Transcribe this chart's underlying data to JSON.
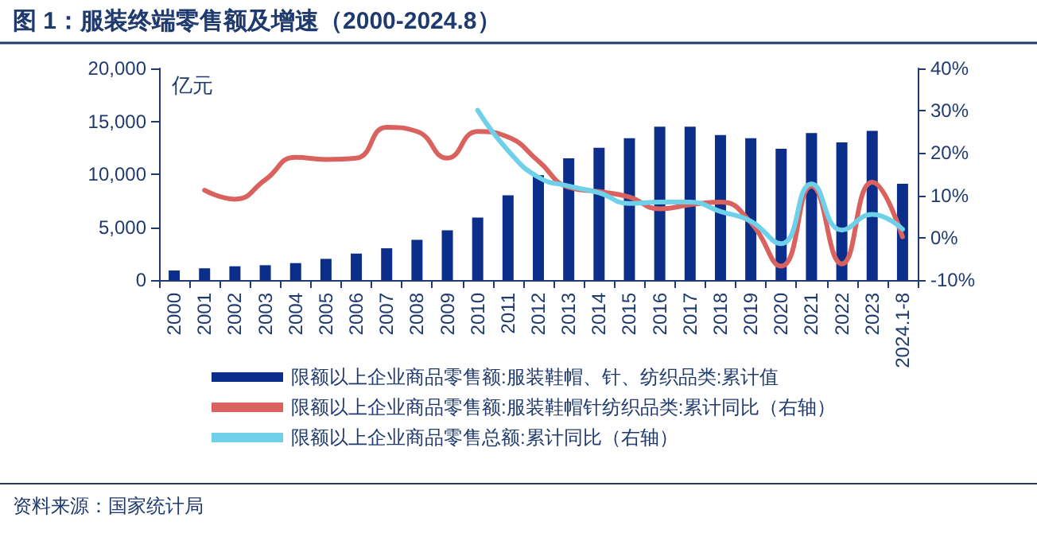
{
  "chart_data": {
    "type": "bar",
    "title": "图 1：服装终端零售额及增速（2000-2024.8）",
    "ylabel": "亿元",
    "annotations": [
      "资料来源：国家统计局"
    ],
    "categories": [
      "2000",
      "2001",
      "2002",
      "2003",
      "2004",
      "2005",
      "2006",
      "2007",
      "2008",
      "2009",
      "2010",
      "2011",
      "2012",
      "2013",
      "2014",
      "2015",
      "2016",
      "2017",
      "2018",
      "2019",
      "2020",
      "2021",
      "2022",
      "2023",
      "2024.1-8"
    ],
    "ylim": [
      0,
      20000
    ],
    "yticks": [
      {
        "value": 0,
        "label": "0"
      },
      {
        "value": 5000,
        "label": "5,000"
      },
      {
        "value": 10000,
        "label": "10,000"
      },
      {
        "value": 15000,
        "label": "15,000"
      },
      {
        "value": 20000,
        "label": "20,000"
      }
    ],
    "y2lim": [
      -10,
      40
    ],
    "y2ticks": [
      {
        "value": -10,
        "label": "-10%"
      },
      {
        "value": 0,
        "label": "0%"
      },
      {
        "value": 10,
        "label": "10%"
      },
      {
        "value": 20,
        "label": "20%"
      },
      {
        "value": 30,
        "label": "30%"
      },
      {
        "value": 40,
        "label": "40%"
      }
    ],
    "legend": "bottom",
    "grid": false,
    "marker": "none",
    "series": [
      {
        "name": "限额以上企业商品零售额:服装鞋帽、针、纺织品类:累计值",
        "color": "#0b2e8a",
        "values": [
          900,
          1100,
          1300,
          1400,
          1600,
          2000,
          2500,
          3000,
          3800,
          4700,
          5900,
          8000,
          9900,
          11500,
          12500,
          13400,
          14500,
          14500,
          13700,
          13400,
          12400,
          13900,
          13000,
          14100,
          9100
        ]
      },
      {
        "name": "限额以上企业商品零售额:服装鞋帽针纺织品类:累计同比（右轴）",
        "type": "line",
        "axis": "y2",
        "color": "#d9625f",
        "values": [
          null,
          11.2,
          9.1,
          13.7,
          19.0,
          18.5,
          18.8,
          26.1,
          25.1,
          18.8,
          25.1,
          23.8,
          18.1,
          11.9,
          10.9,
          9.6,
          6.8,
          7.8,
          8.4,
          3.6,
          -6.7,
          12.2,
          -6.2,
          13.1,
          0.2
        ]
      },
      {
        "name": "限额以上企业商品零售总额:累计同比（右轴）",
        "type": "line",
        "axis": "y2",
        "color": "#6fd0ea",
        "values": [
          null,
          null,
          null,
          null,
          null,
          null,
          null,
          null,
          null,
          null,
          30.1,
          20.6,
          14.3,
          12.2,
          10.6,
          8.1,
          8.4,
          8.4,
          6.2,
          3.9,
          -1.4,
          12.7,
          1.8,
          5.5,
          2.0
        ]
      }
    ]
  }
}
